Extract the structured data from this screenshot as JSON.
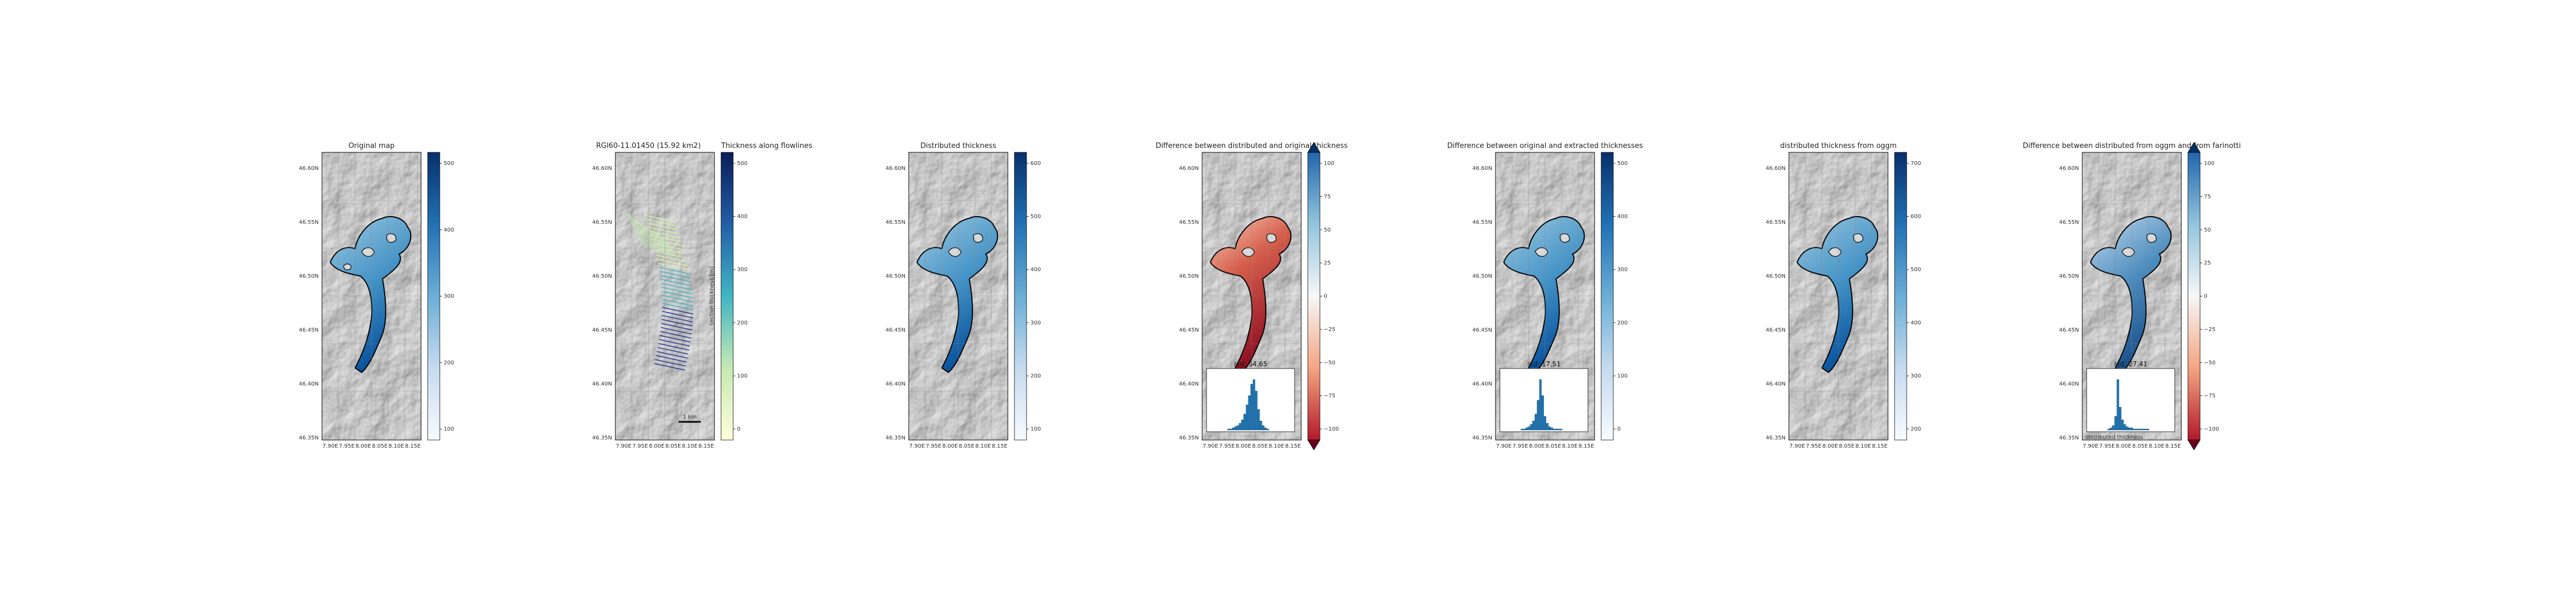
{
  "figure": {
    "panels": [
      {
        "id": "p1",
        "title": "Original map",
        "lon_ticks": [
          "7.90E",
          "7.95E",
          "8.00E",
          "8.05E",
          "8.10E",
          "8.15E"
        ],
        "lat_ticks": [
          "46.60N",
          "46.55N",
          "46.50N",
          "46.45N",
          "46.40N",
          "46.35N"
        ],
        "colorbar": {
          "cmap": "blues",
          "ticks": [
            "500",
            "400",
            "300",
            "200",
            "100"
          ],
          "extend": "none"
        }
      },
      {
        "id": "p2",
        "title": "RGI60-11.01450 (15.92 km2)",
        "title_right": "Thickness along flowlines",
        "lon_ticks": [
          "7.90E",
          "7.95E",
          "8.00E",
          "8.05E",
          "8.10E",
          "8.15E"
        ],
        "lat_ticks": [
          "46.60N",
          "46.55N",
          "46.50N",
          "46.45N",
          "46.40N",
          "46.35N"
        ],
        "colorbar": {
          "cmap": "ylgnbu",
          "label": "Section thickness [m]",
          "ticks": [
            "500",
            "400",
            "300",
            "200",
            "100",
            "0"
          ],
          "extend": "none"
        },
        "scalebar": "1 km"
      },
      {
        "id": "p3",
        "title": "Distributed thickness",
        "lon_ticks": [
          "7.90E",
          "7.95E",
          "8.00E",
          "8.05E",
          "8.10E",
          "8.15E"
        ],
        "lat_ticks": [
          "46.60N",
          "46.55N",
          "46.50N",
          "46.45N",
          "46.40N",
          "46.35N"
        ],
        "colorbar": {
          "cmap": "blues",
          "ticks": [
            "600",
            "500",
            "400",
            "300",
            "200",
            "100"
          ],
          "extend": "none"
        }
      },
      {
        "id": "p4",
        "title": "Difference between distributed and original thickness",
        "lon_ticks": [
          "7.90E",
          "7.95E",
          "8.00E",
          "8.05E",
          "8.10E",
          "8.15E"
        ],
        "lat_ticks": [
          "46.60N",
          "46.55N",
          "46.50N",
          "46.45N",
          "46.40N",
          "46.35N"
        ],
        "colorbar": {
          "cmap": "rdbu",
          "ticks": [
            "100",
            "75",
            "50",
            "25",
            "0",
            "−25",
            "−50",
            "−75",
            "−100"
          ],
          "extend": "both"
        },
        "inset": {
          "label": "std: 54.65",
          "counts": [
            1,
            1,
            2,
            3,
            4,
            6,
            9,
            14,
            22,
            30,
            40,
            44,
            34,
            18,
            8,
            4,
            2,
            1
          ]
        }
      },
      {
        "id": "p5",
        "title": "Difference between original and extracted thicknesses",
        "lon_ticks": [
          "7.90E",
          "7.95E",
          "8.00E",
          "8.05E",
          "8.10E",
          "8.15E"
        ],
        "lat_ticks": [
          "46.60N",
          "46.55N",
          "46.50N",
          "46.45N",
          "46.40N",
          "46.35N"
        ],
        "colorbar": {
          "cmap": "blues",
          "ticks": [
            "500",
            "400",
            "300",
            "200",
            "100",
            "0"
          ],
          "extend": "none"
        },
        "inset": {
          "label": "std: 17.51",
          "counts": [
            1,
            1,
            2,
            3,
            5,
            8,
            14,
            26,
            44,
            30,
            12,
            6,
            3,
            2,
            1,
            1,
            1,
            1
          ]
        }
      },
      {
        "id": "p6",
        "title": "distributed thickness from oggm",
        "lon_ticks": [
          "7.90E",
          "7.95E",
          "8.00E",
          "8.05E",
          "8.10E",
          "8.15E"
        ],
        "lat_ticks": [
          "46.60N",
          "46.55N",
          "46.50N",
          "46.45N",
          "46.40N",
          "46.35N"
        ],
        "colorbar": {
          "cmap": "blues",
          "ticks": [
            "700",
            "600",
            "500",
            "400",
            "300",
            "200"
          ],
          "extend": "none"
        }
      },
      {
        "id": "p7",
        "title": "Difference between distributed from oggm and from farinotti",
        "lon_ticks": [
          "7.90E",
          "7.95E",
          "8.00E",
          "8.05E",
          "8.10E",
          "8.15E"
        ],
        "lat_ticks": [
          "46.60N",
          "46.55N",
          "46.50N",
          "46.45N",
          "46.40N",
          "46.35N"
        ],
        "colorbar": {
          "cmap": "rdbu",
          "ticks": [
            "100",
            "75",
            "50",
            "25",
            "0",
            "−25",
            "−50",
            "−75",
            "−100"
          ],
          "extend": "both"
        },
        "inset": {
          "label": "std: 27.41",
          "xlabel": "distributed thickness",
          "counts": [
            1,
            2,
            4,
            12,
            44,
            20,
            9,
            5,
            3,
            2,
            2,
            1,
            1,
            1,
            1,
            1,
            1,
            1
          ]
        }
      }
    ]
  },
  "colors": {
    "outline": "#000000",
    "hist_bar": "#1f77b4",
    "blues_dark": "#08306b",
    "blues_light": "#f7fbff",
    "red_dark": "#67001f"
  }
}
